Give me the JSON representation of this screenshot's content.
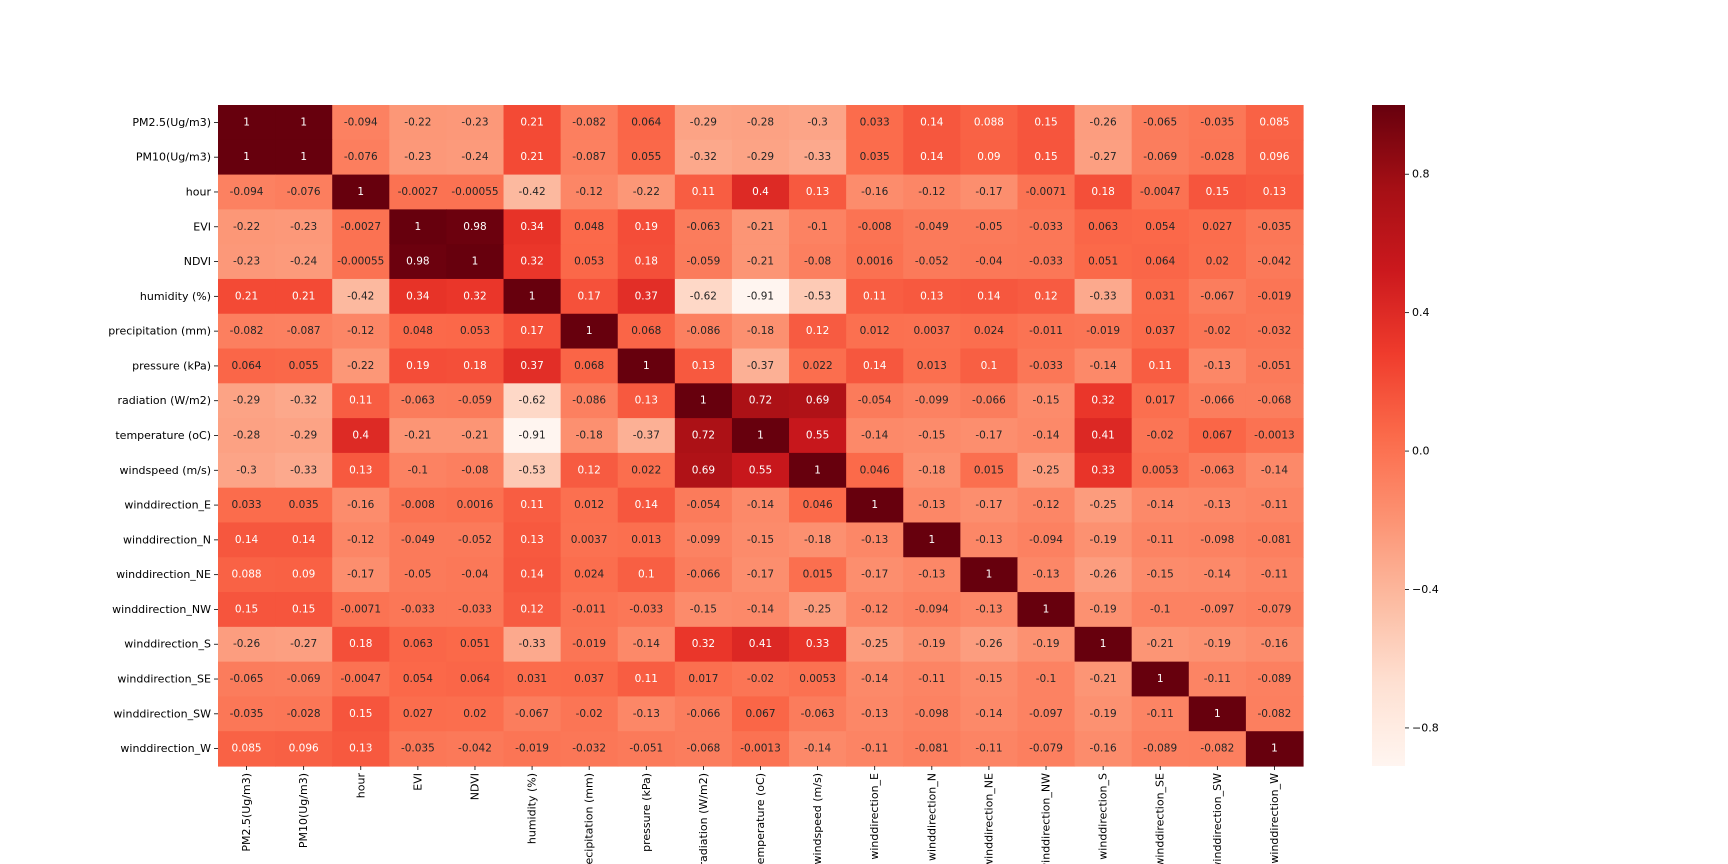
{
  "chart_data": {
    "type": "heatmap",
    "title": "",
    "xlabel": "",
    "ylabel": "",
    "labels": [
      "PM2.5(Ug/m3)",
      "PM10(Ug/m3)",
      "hour",
      "EVI",
      "NDVI",
      "humidity (%)",
      "precipitation (mm)",
      "pressure (kPa)",
      "radiation (W/m2)",
      "temperature (oC)",
      "windspeed (m/s)",
      "winddirection_E",
      "winddirection_N",
      "winddirection_NE",
      "winddirection_NW",
      "winddirection_S",
      "winddirection_SE",
      "winddirection_SW",
      "winddirection_W"
    ],
    "matrix": [
      [
        "1",
        "1",
        "-0.094",
        "-0.22",
        "-0.23",
        "0.21",
        "-0.082",
        "0.064",
        "-0.29",
        "-0.28",
        "-0.3",
        "0.033",
        "0.14",
        "0.088",
        "0.15",
        "-0.26",
        "-0.065",
        "-0.035",
        "0.085"
      ],
      [
        "1",
        "1",
        "-0.076",
        "-0.23",
        "-0.24",
        "0.21",
        "-0.087",
        "0.055",
        "-0.32",
        "-0.29",
        "-0.33",
        "0.035",
        "0.14",
        "0.09",
        "0.15",
        "-0.27",
        "-0.069",
        "-0.028",
        "0.096"
      ],
      [
        "-0.094",
        "-0.076",
        "1",
        "-0.0027",
        "-0.00055",
        "-0.42",
        "-0.12",
        "-0.22",
        "0.11",
        "0.4",
        "0.13",
        "-0.16",
        "-0.12",
        "-0.17",
        "-0.0071",
        "0.18",
        "-0.0047",
        "0.15",
        "0.13"
      ],
      [
        "-0.22",
        "-0.23",
        "-0.0027",
        "1",
        "0.98",
        "0.34",
        "0.048",
        "0.19",
        "-0.063",
        "-0.21",
        "-0.1",
        "-0.008",
        "-0.049",
        "-0.05",
        "-0.033",
        "0.063",
        "0.054",
        "0.027",
        "-0.035"
      ],
      [
        "-0.23",
        "-0.24",
        "-0.00055",
        "0.98",
        "1",
        "0.32",
        "0.053",
        "0.18",
        "-0.059",
        "-0.21",
        "-0.08",
        "0.0016",
        "-0.052",
        "-0.04",
        "-0.033",
        "0.051",
        "0.064",
        "0.02",
        "-0.042"
      ],
      [
        "0.21",
        "0.21",
        "-0.42",
        "0.34",
        "0.32",
        "1",
        "0.17",
        "0.37",
        "-0.62",
        "-0.91",
        "-0.53",
        "0.11",
        "0.13",
        "0.14",
        "0.12",
        "-0.33",
        "0.031",
        "-0.067",
        "-0.019"
      ],
      [
        "-0.082",
        "-0.087",
        "-0.12",
        "0.048",
        "0.053",
        "0.17",
        "1",
        "0.068",
        "-0.086",
        "-0.18",
        "0.12",
        "0.012",
        "0.0037",
        "0.024",
        "-0.011",
        "-0.019",
        "0.037",
        "-0.02",
        "-0.032"
      ],
      [
        "0.064",
        "0.055",
        "-0.22",
        "0.19",
        "0.18",
        "0.37",
        "0.068",
        "1",
        "0.13",
        "-0.37",
        "0.022",
        "0.14",
        "0.013",
        "0.1",
        "-0.033",
        "-0.14",
        "0.11",
        "-0.13",
        "-0.051"
      ],
      [
        "-0.29",
        "-0.32",
        "0.11",
        "-0.063",
        "-0.059",
        "-0.62",
        "-0.086",
        "0.13",
        "1",
        "0.72",
        "0.69",
        "-0.054",
        "-0.099",
        "-0.066",
        "-0.15",
        "0.32",
        "0.017",
        "-0.066",
        "-0.068"
      ],
      [
        "-0.28",
        "-0.29",
        "0.4",
        "-0.21",
        "-0.21",
        "-0.91",
        "-0.18",
        "-0.37",
        "0.72",
        "1",
        "0.55",
        "-0.14",
        "-0.15",
        "-0.17",
        "-0.14",
        "0.41",
        "-0.02",
        "0.067",
        "-0.0013"
      ],
      [
        "-0.3",
        "-0.33",
        "0.13",
        "-0.1",
        "-0.08",
        "-0.53",
        "0.12",
        "0.022",
        "0.69",
        "0.55",
        "1",
        "0.046",
        "-0.18",
        "0.015",
        "-0.25",
        "0.33",
        "0.0053",
        "-0.063",
        "-0.14"
      ],
      [
        "0.033",
        "0.035",
        "-0.16",
        "-0.008",
        "0.0016",
        "0.11",
        "0.012",
        "0.14",
        "-0.054",
        "-0.14",
        "0.046",
        "1",
        "-0.13",
        "-0.17",
        "-0.12",
        "-0.25",
        "-0.14",
        "-0.13",
        "-0.11"
      ],
      [
        "0.14",
        "0.14",
        "-0.12",
        "-0.049",
        "-0.052",
        "0.13",
        "0.0037",
        "0.013",
        "-0.099",
        "-0.15",
        "-0.18",
        "-0.13",
        "1",
        "-0.13",
        "-0.094",
        "-0.19",
        "-0.11",
        "-0.098",
        "-0.081"
      ],
      [
        "0.088",
        "0.09",
        "-0.17",
        "-0.05",
        "-0.04",
        "0.14",
        "0.024",
        "0.1",
        "-0.066",
        "-0.17",
        "0.015",
        "-0.17",
        "-0.13",
        "1",
        "-0.13",
        "-0.26",
        "-0.15",
        "-0.14",
        "-0.11"
      ],
      [
        "0.15",
        "0.15",
        "-0.0071",
        "-0.033",
        "-0.033",
        "0.12",
        "-0.011",
        "-0.033",
        "-0.15",
        "-0.14",
        "-0.25",
        "-0.12",
        "-0.094",
        "-0.13",
        "1",
        "-0.19",
        "-0.1",
        "-0.097",
        "-0.079"
      ],
      [
        "-0.26",
        "-0.27",
        "0.18",
        "0.063",
        "0.051",
        "-0.33",
        "-0.019",
        "-0.14",
        "0.32",
        "0.41",
        "0.33",
        "-0.25",
        "-0.19",
        "-0.26",
        "-0.19",
        "1",
        "-0.21",
        "-0.19",
        "-0.16"
      ],
      [
        "-0.065",
        "-0.069",
        "-0.0047",
        "0.054",
        "0.064",
        "0.031",
        "0.037",
        "0.11",
        "0.017",
        "-0.02",
        "0.0053",
        "-0.14",
        "-0.11",
        "-0.15",
        "-0.1",
        "-0.21",
        "1",
        "-0.11",
        "-0.089"
      ],
      [
        "-0.035",
        "-0.028",
        "0.15",
        "0.027",
        "0.02",
        "-0.067",
        "-0.02",
        "-0.13",
        "-0.066",
        "0.067",
        "-0.063",
        "-0.13",
        "-0.098",
        "-0.14",
        "-0.097",
        "-0.19",
        "-0.11",
        "1",
        "-0.082"
      ],
      [
        "0.085",
        "0.096",
        "0.13",
        "-0.035",
        "-0.042",
        "-0.019",
        "-0.032",
        "-0.051",
        "-0.068",
        "-0.0013",
        "-0.14",
        "-0.11",
        "-0.081",
        "-0.11",
        "-0.079",
        "-0.16",
        "-0.089",
        "-0.082",
        "1"
      ]
    ],
    "vmin": -0.91,
    "vmax": 1,
    "colormap": "Reds",
    "colorbar": {
      "placement": "right",
      "ticks": [
        0.8,
        0.4,
        0.0,
        -0.4,
        -0.8
      ],
      "tick_labels": [
        "0.8",
        "0.4",
        "0.0",
        "−0.4",
        "−0.8"
      ]
    },
    "annotations": true,
    "grid": false
  }
}
